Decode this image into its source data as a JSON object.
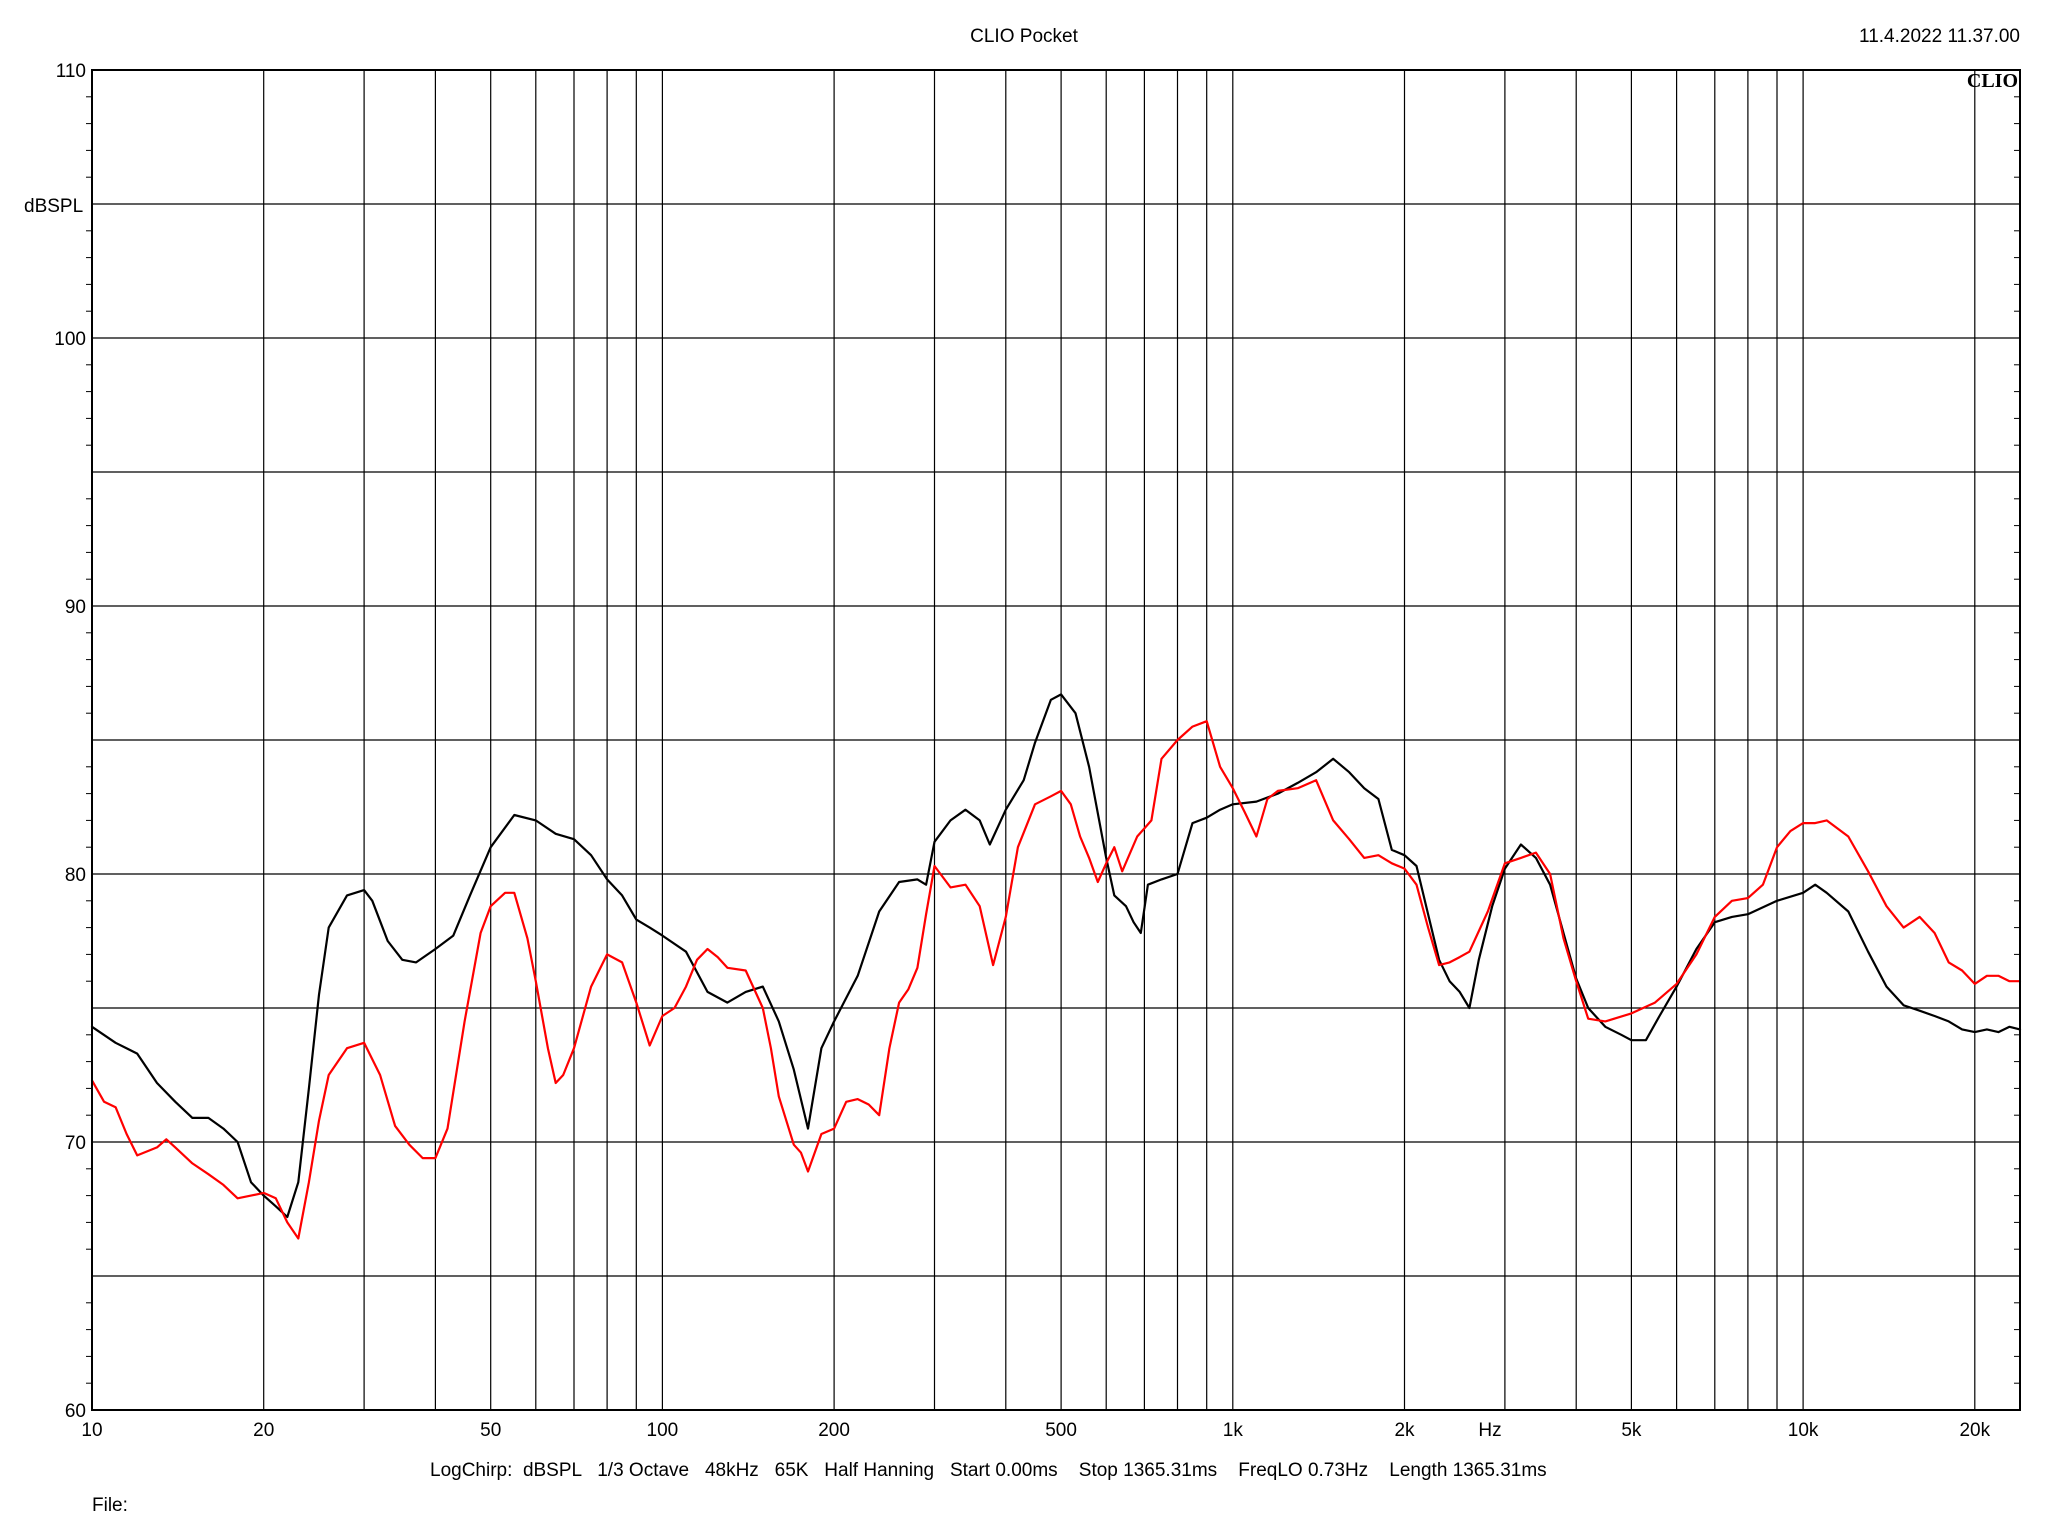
{
  "app_title": "CLIO Pocket",
  "timestamp": "11.4.2022 11.37.00",
  "logo_text": "CLIO",
  "file_label": "File:",
  "settings_line": "LogChirp:  dBSPL   1/3 Octave   48kHz   65K   Half Hanning   Start 0.00ms    Stop 1365.31ms    FreqLO 0.73Hz    Length 1365.31ms",
  "chart_data": {
    "type": "line",
    "title": "CLIO Pocket",
    "xlabel": "Hz",
    "ylabel": "dBSPL",
    "x_scale": "log",
    "xlim": [
      10,
      24000
    ],
    "ylim": [
      60,
      110
    ],
    "grid": true,
    "y_ticks": [
      {
        "v": 110,
        "t": "110"
      },
      {
        "v": 100,
        "t": "100"
      },
      {
        "v": 90,
        "t": "90"
      },
      {
        "v": 80,
        "t": "80"
      },
      {
        "v": 70,
        "t": "70"
      },
      {
        "v": 60,
        "t": "60"
      }
    ],
    "x_ticks": [
      {
        "v": 10,
        "t": "10"
      },
      {
        "v": 20,
        "t": "20"
      },
      {
        "v": 50,
        "t": "50"
      },
      {
        "v": 100,
        "t": "100"
      },
      {
        "v": 200,
        "t": "200"
      },
      {
        "v": 500,
        "t": "500"
      },
      {
        "v": 1000,
        "t": "1k"
      },
      {
        "v": 2000,
        "t": "2k"
      },
      {
        "v": 5000,
        "t": "5k"
      },
      {
        "v": 10000,
        "t": "10k"
      },
      {
        "v": 20000,
        "t": "20k"
      }
    ],
    "series": [
      {
        "color": "#000000",
        "points": [
          [
            10,
            74.3
          ],
          [
            11,
            73.7
          ],
          [
            12,
            73.3
          ],
          [
            13,
            72.2
          ],
          [
            14,
            71.5
          ],
          [
            15,
            70.9
          ],
          [
            16,
            70.9
          ],
          [
            17,
            70.5
          ],
          [
            18,
            70.0
          ],
          [
            19,
            68.5
          ],
          [
            20,
            68.0
          ],
          [
            21,
            67.6
          ],
          [
            22,
            67.2
          ],
          [
            23,
            68.5
          ],
          [
            24,
            72.0
          ],
          [
            25,
            75.5
          ],
          [
            26,
            78.0
          ],
          [
            28,
            79.2
          ],
          [
            30,
            79.4
          ],
          [
            31,
            79.0
          ],
          [
            33,
            77.5
          ],
          [
            35,
            76.8
          ],
          [
            37,
            76.7
          ],
          [
            40,
            77.2
          ],
          [
            43,
            77.7
          ],
          [
            46,
            79.2
          ],
          [
            50,
            81.0
          ],
          [
            55,
            82.2
          ],
          [
            60,
            82.0
          ],
          [
            65,
            81.5
          ],
          [
            70,
            81.3
          ],
          [
            75,
            80.7
          ],
          [
            80,
            79.8
          ],
          [
            85,
            79.2
          ],
          [
            90,
            78.3
          ],
          [
            95,
            78.0
          ],
          [
            100,
            77.7
          ],
          [
            110,
            77.1
          ],
          [
            120,
            75.6
          ],
          [
            130,
            75.2
          ],
          [
            140,
            75.6
          ],
          [
            150,
            75.8
          ],
          [
            160,
            74.5
          ],
          [
            170,
            72.7
          ],
          [
            180,
            70.5
          ],
          [
            190,
            73.5
          ],
          [
            200,
            74.5
          ],
          [
            220,
            76.2
          ],
          [
            240,
            78.6
          ],
          [
            260,
            79.7
          ],
          [
            280,
            79.8
          ],
          [
            290,
            79.6
          ],
          [
            300,
            81.2
          ],
          [
            320,
            82.0
          ],
          [
            340,
            82.4
          ],
          [
            360,
            82.0
          ],
          [
            375,
            81.1
          ],
          [
            400,
            82.4
          ],
          [
            430,
            83.5
          ],
          [
            450,
            84.9
          ],
          [
            480,
            86.5
          ],
          [
            500,
            86.7
          ],
          [
            530,
            86.0
          ],
          [
            560,
            84.0
          ],
          [
            600,
            80.6
          ],
          [
            620,
            79.2
          ],
          [
            650,
            78.8
          ],
          [
            670,
            78.2
          ],
          [
            690,
            77.8
          ],
          [
            710,
            79.6
          ],
          [
            750,
            79.8
          ],
          [
            800,
            80.0
          ],
          [
            850,
            81.9
          ],
          [
            900,
            82.1
          ],
          [
            950,
            82.4
          ],
          [
            1000,
            82.6
          ],
          [
            1100,
            82.7
          ],
          [
            1200,
            83.0
          ],
          [
            1300,
            83.4
          ],
          [
            1400,
            83.8
          ],
          [
            1500,
            84.3
          ],
          [
            1600,
            83.8
          ],
          [
            1700,
            83.2
          ],
          [
            1800,
            82.8
          ],
          [
            1900,
            80.9
          ],
          [
            2000,
            80.7
          ],
          [
            2100,
            80.3
          ],
          [
            2200,
            78.5
          ],
          [
            2300,
            76.8
          ],
          [
            2400,
            76.0
          ],
          [
            2500,
            75.6
          ],
          [
            2600,
            75.0
          ],
          [
            2700,
            76.8
          ],
          [
            2850,
            78.8
          ],
          [
            3000,
            80.2
          ],
          [
            3200,
            81.1
          ],
          [
            3400,
            80.6
          ],
          [
            3600,
            79.6
          ],
          [
            3800,
            77.8
          ],
          [
            4000,
            76.1
          ],
          [
            4200,
            75.0
          ],
          [
            4500,
            74.3
          ],
          [
            4800,
            74.0
          ],
          [
            5000,
            73.8
          ],
          [
            5300,
            73.8
          ],
          [
            5600,
            74.7
          ],
          [
            6000,
            75.8
          ],
          [
            6500,
            77.2
          ],
          [
            7000,
            78.2
          ],
          [
            7500,
            78.4
          ],
          [
            8000,
            78.5
          ],
          [
            9000,
            79.0
          ],
          [
            10000,
            79.3
          ],
          [
            10500,
            79.6
          ],
          [
            11000,
            79.3
          ],
          [
            12000,
            78.6
          ],
          [
            13000,
            77.1
          ],
          [
            14000,
            75.8
          ],
          [
            15000,
            75.1
          ],
          [
            16000,
            74.9
          ],
          [
            17000,
            74.7
          ],
          [
            18000,
            74.5
          ],
          [
            19000,
            74.2
          ],
          [
            20000,
            74.1
          ],
          [
            21000,
            74.2
          ],
          [
            22000,
            74.1
          ],
          [
            23000,
            74.3
          ],
          [
            24000,
            74.2
          ]
        ]
      },
      {
        "color": "#ff0000",
        "points": [
          [
            10,
            72.3
          ],
          [
            10.5,
            71.5
          ],
          [
            11,
            71.3
          ],
          [
            11.5,
            70.3
          ],
          [
            12,
            69.5
          ],
          [
            13,
            69.8
          ],
          [
            13.5,
            70.1
          ],
          [
            14,
            69.8
          ],
          [
            15,
            69.2
          ],
          [
            16,
            68.8
          ],
          [
            17,
            68.4
          ],
          [
            18,
            67.9
          ],
          [
            19,
            68.0
          ],
          [
            20,
            68.1
          ],
          [
            21,
            67.9
          ],
          [
            22,
            67.0
          ],
          [
            23,
            66.4
          ],
          [
            24,
            68.5
          ],
          [
            25,
            70.8
          ],
          [
            26,
            72.5
          ],
          [
            28,
            73.5
          ],
          [
            30,
            73.7
          ],
          [
            32,
            72.5
          ],
          [
            34,
            70.6
          ],
          [
            36,
            69.9
          ],
          [
            38,
            69.4
          ],
          [
            40,
            69.4
          ],
          [
            42,
            70.5
          ],
          [
            45,
            74.5
          ],
          [
            48,
            77.8
          ],
          [
            50,
            78.8
          ],
          [
            53,
            79.3
          ],
          [
            55,
            79.3
          ],
          [
            58,
            77.6
          ],
          [
            60,
            76.0
          ],
          [
            63,
            73.5
          ],
          [
            65,
            72.2
          ],
          [
            67,
            72.5
          ],
          [
            70,
            73.5
          ],
          [
            75,
            75.8
          ],
          [
            80,
            77.0
          ],
          [
            85,
            76.7
          ],
          [
            90,
            75.2
          ],
          [
            95,
            73.6
          ],
          [
            100,
            74.7
          ],
          [
            105,
            75.0
          ],
          [
            110,
            75.8
          ],
          [
            115,
            76.8
          ],
          [
            120,
            77.2
          ],
          [
            125,
            76.9
          ],
          [
            130,
            76.5
          ],
          [
            140,
            76.4
          ],
          [
            150,
            75.0
          ],
          [
            155,
            73.5
          ],
          [
            160,
            71.7
          ],
          [
            170,
            69.9
          ],
          [
            175,
            69.6
          ],
          [
            180,
            68.9
          ],
          [
            190,
            70.3
          ],
          [
            200,
            70.5
          ],
          [
            210,
            71.5
          ],
          [
            220,
            71.6
          ],
          [
            230,
            71.4
          ],
          [
            240,
            71.0
          ],
          [
            250,
            73.5
          ],
          [
            260,
            75.2
          ],
          [
            270,
            75.7
          ],
          [
            280,
            76.5
          ],
          [
            290,
            78.5
          ],
          [
            300,
            80.3
          ],
          [
            320,
            79.5
          ],
          [
            340,
            79.6
          ],
          [
            360,
            78.8
          ],
          [
            380,
            76.6
          ],
          [
            400,
            78.4
          ],
          [
            420,
            81.0
          ],
          [
            450,
            82.6
          ],
          [
            480,
            82.9
          ],
          [
            500,
            83.1
          ],
          [
            520,
            82.6
          ],
          [
            540,
            81.4
          ],
          [
            560,
            80.6
          ],
          [
            580,
            79.7
          ],
          [
            600,
            80.4
          ],
          [
            620,
            81.0
          ],
          [
            640,
            80.1
          ],
          [
            680,
            81.4
          ],
          [
            700,
            81.7
          ],
          [
            720,
            82.0
          ],
          [
            750,
            84.3
          ],
          [
            800,
            85.0
          ],
          [
            850,
            85.5
          ],
          [
            900,
            85.7
          ],
          [
            950,
            84.0
          ],
          [
            1000,
            83.2
          ],
          [
            1050,
            82.3
          ],
          [
            1100,
            81.4
          ],
          [
            1150,
            82.8
          ],
          [
            1200,
            83.1
          ],
          [
            1300,
            83.2
          ],
          [
            1400,
            83.5
          ],
          [
            1500,
            82.0
          ],
          [
            1600,
            81.3
          ],
          [
            1700,
            80.6
          ],
          [
            1800,
            80.7
          ],
          [
            1900,
            80.4
          ],
          [
            2000,
            80.2
          ],
          [
            2100,
            79.6
          ],
          [
            2200,
            78.0
          ],
          [
            2300,
            76.6
          ],
          [
            2400,
            76.7
          ],
          [
            2500,
            76.9
          ],
          [
            2600,
            77.1
          ],
          [
            2800,
            78.6
          ],
          [
            3000,
            80.4
          ],
          [
            3200,
            80.6
          ],
          [
            3400,
            80.8
          ],
          [
            3600,
            80.0
          ],
          [
            3800,
            77.6
          ],
          [
            4000,
            76.0
          ],
          [
            4200,
            74.6
          ],
          [
            4500,
            74.5
          ],
          [
            5000,
            74.8
          ],
          [
            5500,
            75.2
          ],
          [
            6000,
            75.9
          ],
          [
            6500,
            77.0
          ],
          [
            7000,
            78.4
          ],
          [
            7500,
            79.0
          ],
          [
            8000,
            79.1
          ],
          [
            8500,
            79.6
          ],
          [
            9000,
            81.0
          ],
          [
            9500,
            81.6
          ],
          [
            10000,
            81.9
          ],
          [
            10500,
            81.9
          ],
          [
            11000,
            82.0
          ],
          [
            12000,
            81.4
          ],
          [
            13000,
            80.1
          ],
          [
            14000,
            78.8
          ],
          [
            15000,
            78.0
          ],
          [
            16000,
            78.4
          ],
          [
            17000,
            77.8
          ],
          [
            18000,
            76.7
          ],
          [
            19000,
            76.4
          ],
          [
            20000,
            75.9
          ],
          [
            21000,
            76.2
          ],
          [
            22000,
            76.2
          ],
          [
            23000,
            76.0
          ],
          [
            24000,
            76.0
          ]
        ]
      }
    ]
  }
}
